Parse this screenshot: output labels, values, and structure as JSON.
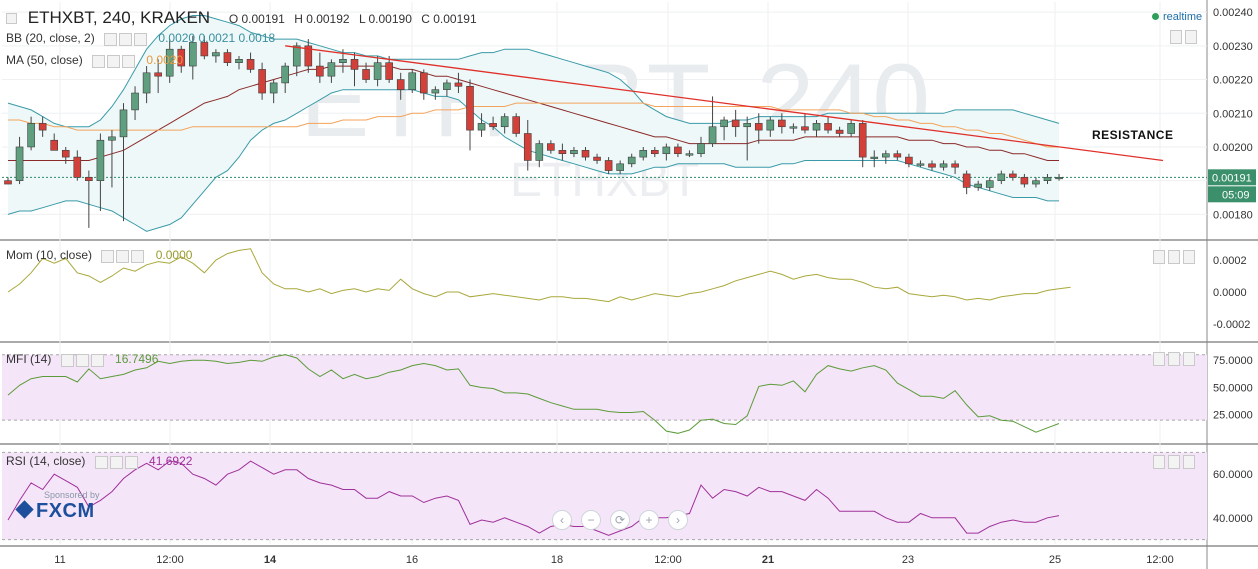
{
  "header": {
    "symbol": "ETHXBT, 240, KRAKEN",
    "ohlc": {
      "o": "O 0.00191",
      "h": "H 0.00192",
      "l": "L 0.00190",
      "c": "C 0.00191"
    },
    "realtime": "realtime",
    "watermark_main": "ETHXBT, 240",
    "watermark_sub": "ETHXBT"
  },
  "indicators": {
    "bb": {
      "label": "BB (20, close, 2)",
      "values": "0.0020  0.0021  0.0018"
    },
    "ma": {
      "label": "MA (50, close)",
      "value": "0.0020"
    },
    "mom": {
      "label": "Mom (10, close)",
      "value": "0.0000"
    },
    "mfi": {
      "label": "MFI (14)",
      "value": "16.7496"
    },
    "rsi": {
      "label": "RSI (14, close)",
      "value": "41.6922"
    }
  },
  "annotation": "RESISTANCE",
  "price_tags": {
    "last": "0.00191",
    "countdown": "05:09"
  },
  "sponsor": {
    "small": "Sponsored by",
    "brand": "FXCM"
  },
  "nav_buttons": [
    "‹",
    "−",
    "⟳",
    "+",
    "›"
  ],
  "colors": {
    "up": "#5f9f7f",
    "down": "#d3403a",
    "bb": "#3a9aa8",
    "bb_fill": "#eef8f8",
    "ma": "#f3a35b",
    "resistance": "#e0302a",
    "mom": "#a9a83c",
    "mfi": "#5c9b3a",
    "mfi_fill": "#f4e6f8",
    "rsi": "#a0309a",
    "rsi_fill": "#f4e6f8"
  },
  "chart_data": {
    "type": "candlestick",
    "x_tick_labels": [
      "11",
      "12:00",
      "14",
      "16",
      "18",
      "12:00",
      "21",
      "23",
      "25",
      "12:00"
    ],
    "y_axis_ticks": [
      "0.00240",
      "0.00230",
      "0.00220",
      "0.00210",
      "0.00200",
      "0.00180"
    ],
    "candles": [
      [
        0.0019,
        0.00191,
        0.00189,
        0.00189
      ],
      [
        0.0019,
        0.00203,
        0.00189,
        0.002
      ],
      [
        0.002,
        0.00209,
        0.00199,
        0.00207
      ],
      [
        0.00207,
        0.00209,
        0.00203,
        0.00205
      ],
      [
        0.00202,
        0.00204,
        0.00199,
        0.00199
      ],
      [
        0.00199,
        0.002,
        0.00195,
        0.00197
      ],
      [
        0.00197,
        0.00199,
        0.0019,
        0.00191
      ],
      [
        0.00191,
        0.00193,
        0.00176,
        0.0019
      ],
      [
        0.0019,
        0.00204,
        0.00181,
        0.00202
      ],
      [
        0.00202,
        0.00205,
        0.00188,
        0.00203
      ],
      [
        0.00203,
        0.00213,
        0.00178,
        0.00211
      ],
      [
        0.00211,
        0.00218,
        0.00208,
        0.00216
      ],
      [
        0.00216,
        0.00224,
        0.00213,
        0.00222
      ],
      [
        0.00222,
        0.00226,
        0.00216,
        0.00221
      ],
      [
        0.00221,
        0.00232,
        0.00219,
        0.00229
      ],
      [
        0.00229,
        0.0023,
        0.00222,
        0.00224
      ],
      [
        0.00224,
        0.00233,
        0.0022,
        0.00231
      ],
      [
        0.00231,
        0.00233,
        0.00226,
        0.00227
      ],
      [
        0.00227,
        0.00229,
        0.00225,
        0.00228
      ],
      [
        0.00228,
        0.00229,
        0.00224,
        0.00225
      ],
      [
        0.00225,
        0.00227,
        0.00223,
        0.00226
      ],
      [
        0.00226,
        0.00228,
        0.00222,
        0.00223
      ],
      [
        0.00223,
        0.00225,
        0.00214,
        0.00216
      ],
      [
        0.00216,
        0.0022,
        0.00213,
        0.00219
      ],
      [
        0.00219,
        0.00225,
        0.00216,
        0.00224
      ],
      [
        0.00224,
        0.00231,
        0.00221,
        0.0023
      ],
      [
        0.0023,
        0.00232,
        0.00222,
        0.00224
      ],
      [
        0.00224,
        0.00228,
        0.00219,
        0.00221
      ],
      [
        0.00221,
        0.00226,
        0.00219,
        0.00225
      ],
      [
        0.00225,
        0.00229,
        0.00222,
        0.00226
      ],
      [
        0.00226,
        0.00228,
        0.00218,
        0.00223
      ],
      [
        0.00223,
        0.00225,
        0.00219,
        0.0022
      ],
      [
        0.0022,
        0.00227,
        0.00218,
        0.00225
      ],
      [
        0.00225,
        0.00227,
        0.00219,
        0.0022
      ],
      [
        0.0022,
        0.00222,
        0.00214,
        0.00217
      ],
      [
        0.00217,
        0.00223,
        0.00216,
        0.00222
      ],
      [
        0.00222,
        0.00223,
        0.00214,
        0.00216
      ],
      [
        0.00216,
        0.00218,
        0.00214,
        0.00217
      ],
      [
        0.00217,
        0.0022,
        0.00215,
        0.00219
      ],
      [
        0.00219,
        0.00222,
        0.00216,
        0.00218
      ],
      [
        0.00218,
        0.0022,
        0.00199,
        0.00205
      ],
      [
        0.00205,
        0.0021,
        0.00203,
        0.00207
      ],
      [
        0.00207,
        0.00209,
        0.00205,
        0.00206
      ],
      [
        0.00206,
        0.0021,
        0.00204,
        0.00209
      ],
      [
        0.00209,
        0.0021,
        0.00203,
        0.00204
      ],
      [
        0.00204,
        0.00208,
        0.00193,
        0.00196
      ],
      [
        0.00196,
        0.00202,
        0.00194,
        0.00201
      ],
      [
        0.00201,
        0.00202,
        0.00198,
        0.00199
      ],
      [
        0.00199,
        0.00201,
        0.00196,
        0.00198
      ],
      [
        0.00198,
        0.002,
        0.00197,
        0.00199
      ],
      [
        0.00199,
        0.002,
        0.00196,
        0.00197
      ],
      [
        0.00197,
        0.00198,
        0.00195,
        0.00196
      ],
      [
        0.00196,
        0.00197,
        0.00192,
        0.00193
      ],
      [
        0.00193,
        0.00196,
        0.00192,
        0.00195
      ],
      [
        0.00195,
        0.00198,
        0.00194,
        0.00197
      ],
      [
        0.00197,
        0.002,
        0.00196,
        0.00199
      ],
      [
        0.00199,
        0.002,
        0.00197,
        0.00198
      ],
      [
        0.00198,
        0.00201,
        0.00196,
        0.002
      ],
      [
        0.002,
        0.00201,
        0.00197,
        0.00198
      ],
      [
        0.00198,
        0.00199,
        0.00197,
        0.00198
      ],
      [
        0.00198,
        0.00203,
        0.00197,
        0.00201
      ],
      [
        0.00201,
        0.00215,
        0.002,
        0.00206
      ],
      [
        0.00206,
        0.00209,
        0.00202,
        0.00208
      ],
      [
        0.00208,
        0.00211,
        0.00203,
        0.00206
      ],
      [
        0.00206,
        0.00209,
        0.00196,
        0.00207
      ],
      [
        0.00207,
        0.0021,
        0.00201,
        0.00205
      ],
      [
        0.00205,
        0.00209,
        0.00203,
        0.00208
      ],
      [
        0.00208,
        0.0021,
        0.00204,
        0.00206
      ],
      [
        0.00206,
        0.00207,
        0.00204,
        0.00206
      ],
      [
        0.00206,
        0.0021,
        0.00204,
        0.00205
      ],
      [
        0.00205,
        0.00208,
        0.00203,
        0.00207
      ],
      [
        0.00207,
        0.00209,
        0.00204,
        0.00205
      ],
      [
        0.00205,
        0.00206,
        0.00203,
        0.00204
      ],
      [
        0.00204,
        0.00208,
        0.00203,
        0.00207
      ],
      [
        0.00207,
        0.00208,
        0.00194,
        0.00197
      ],
      [
        0.00197,
        0.00199,
        0.00194,
        0.00197
      ],
      [
        0.00197,
        0.00199,
        0.00195,
        0.00198
      ],
      [
        0.00198,
        0.00199,
        0.00196,
        0.00197
      ],
      [
        0.00197,
        0.00198,
        0.00194,
        0.00195
      ],
      [
        0.00195,
        0.00196,
        0.00194,
        0.00195
      ],
      [
        0.00195,
        0.00196,
        0.00193,
        0.00194
      ],
      [
        0.00194,
        0.00196,
        0.00193,
        0.00195
      ],
      [
        0.00195,
        0.00196,
        0.00192,
        0.00194
      ],
      [
        0.00192,
        0.00193,
        0.00186,
        0.00188
      ],
      [
        0.00188,
        0.0019,
        0.00187,
        0.00189
      ],
      [
        0.00188,
        0.00191,
        0.00187,
        0.0019
      ],
      [
        0.0019,
        0.00193,
        0.00189,
        0.00192
      ],
      [
        0.00192,
        0.00193,
        0.0019,
        0.00191
      ],
      [
        0.00191,
        0.00192,
        0.00188,
        0.00189
      ],
      [
        0.00189,
        0.00191,
        0.00188,
        0.0019
      ],
      [
        0.0019,
        0.00192,
        0.00189,
        0.00191
      ],
      [
        0.00191,
        0.00192,
        0.0019,
        0.00191
      ]
    ],
    "bb_upper": [
      0.00213,
      0.00212,
      0.00211,
      0.00209,
      0.00207,
      0.00206,
      0.00206,
      0.00206,
      0.00208,
      0.00212,
      0.00217,
      0.00223,
      0.00229,
      0.00233,
      0.00236,
      0.00238,
      0.00239,
      0.00239,
      0.00238,
      0.00237,
      0.00236,
      0.00234,
      0.00233,
      0.00232,
      0.00232,
      0.00232,
      0.00231,
      0.0023,
      0.00229,
      0.00228,
      0.00228,
      0.00227,
      0.00227,
      0.00226,
      0.00226,
      0.00226,
      0.00226,
      0.00226,
      0.00226,
      0.00226,
      0.00227,
      0.00228,
      0.00228,
      0.00229,
      0.00229,
      0.00229,
      0.00228,
      0.00227,
      0.00226,
      0.00225,
      0.00224,
      0.00223,
      0.00222,
      0.0022,
      0.00217,
      0.00213,
      0.00211,
      0.00209,
      0.00208,
      0.00207,
      0.00207,
      0.00207,
      0.00207,
      0.00208,
      0.00208,
      0.00209,
      0.00209,
      0.00209,
      0.00209,
      0.00209,
      0.00209,
      0.0021,
      0.0021,
      0.0021,
      0.0021,
      0.0021,
      0.0021,
      0.0021,
      0.0021,
      0.0021,
      0.0021,
      0.0021,
      0.00211,
      0.00211,
      0.00211,
      0.00211,
      0.00211,
      0.00211,
      0.0021,
      0.00209,
      0.00208,
      0.00207
    ],
    "bb_mid": [
      0.00196,
      0.00196,
      0.00196,
      0.00196,
      0.00196,
      0.00196,
      0.00196,
      0.00196,
      0.00197,
      0.00198,
      0.00199,
      0.00201,
      0.00203,
      0.00205,
      0.00207,
      0.00209,
      0.00211,
      0.00213,
      0.00214,
      0.00215,
      0.00217,
      0.00218,
      0.00219,
      0.0022,
      0.00221,
      0.00222,
      0.00223,
      0.00223,
      0.00224,
      0.00224,
      0.00224,
      0.00224,
      0.00224,
      0.00224,
      0.00223,
      0.00223,
      0.00222,
      0.00221,
      0.00221,
      0.0022,
      0.00219,
      0.00218,
      0.00217,
      0.00216,
      0.00215,
      0.00214,
      0.00213,
      0.00212,
      0.00211,
      0.0021,
      0.00209,
      0.00208,
      0.00207,
      0.00206,
      0.00205,
      0.00204,
      0.00203,
      0.00203,
      0.00202,
      0.00201,
      0.00201,
      0.00201,
      0.00201,
      0.00201,
      0.00201,
      0.00202,
      0.00202,
      0.00202,
      0.00202,
      0.00203,
      0.00203,
      0.00203,
      0.00203,
      0.00203,
      0.00203,
      0.00203,
      0.00203,
      0.00203,
      0.00202,
      0.00202,
      0.00202,
      0.00201,
      0.00201,
      0.002,
      0.002,
      0.00199,
      0.00199,
      0.00198,
      0.00198,
      0.00197,
      0.00196,
      0.00196
    ],
    "bb_lower": [
      0.0018,
      0.00181,
      0.00181,
      0.00182,
      0.00183,
      0.00184,
      0.00184,
      0.00183,
      0.00182,
      0.00181,
      0.00179,
      0.00177,
      0.00175,
      0.00176,
      0.00177,
      0.00179,
      0.00183,
      0.00187,
      0.00191,
      0.00193,
      0.00197,
      0.00202,
      0.00205,
      0.00207,
      0.00208,
      0.0021,
      0.00212,
      0.00214,
      0.00216,
      0.00217,
      0.00217,
      0.00217,
      0.00217,
      0.00217,
      0.00217,
      0.00217,
      0.00216,
      0.00215,
      0.00215,
      0.00214,
      0.00211,
      0.00208,
      0.00206,
      0.00203,
      0.00201,
      0.00199,
      0.00198,
      0.00197,
      0.00196,
      0.00195,
      0.00194,
      0.00193,
      0.00192,
      0.00192,
      0.00192,
      0.00193,
      0.00194,
      0.00194,
      0.00195,
      0.00195,
      0.00195,
      0.00195,
      0.00195,
      0.00194,
      0.00194,
      0.00194,
      0.00194,
      0.00195,
      0.00195,
      0.00196,
      0.00196,
      0.00196,
      0.00196,
      0.00196,
      0.00196,
      0.00196,
      0.00196,
      0.00196,
      0.00195,
      0.00194,
      0.00193,
      0.00192,
      0.00191,
      0.00189,
      0.00188,
      0.00187,
      0.00186,
      0.00185,
      0.00185,
      0.00185,
      0.00184,
      0.00184
    ],
    "ma50": [
      0.00208,
      0.00208,
      0.00207,
      0.00207,
      0.00206,
      0.00206,
      0.00205,
      0.00205,
      0.00205,
      0.00205,
      0.00205,
      0.00205,
      0.00205,
      0.00205,
      0.00205,
      0.00205,
      0.00206,
      0.00206,
      0.00206,
      0.00206,
      0.00206,
      0.00206,
      0.00206,
      0.00206,
      0.00206,
      0.00206,
      0.00207,
      0.00207,
      0.00207,
      0.00208,
      0.00208,
      0.00208,
      0.00209,
      0.00209,
      0.00209,
      0.0021,
      0.0021,
      0.00211,
      0.00211,
      0.00211,
      0.00212,
      0.00212,
      0.00212,
      0.00212,
      0.00213,
      0.00213,
      0.00213,
      0.00213,
      0.00213,
      0.00213,
      0.00213,
      0.00213,
      0.00213,
      0.00213,
      0.00213,
      0.00213,
      0.00212,
      0.00212,
      0.00212,
      0.00212,
      0.00212,
      0.00212,
      0.00212,
      0.00212,
      0.00212,
      0.00212,
      0.00212,
      0.00211,
      0.00211,
      0.00211,
      0.00211,
      0.00211,
      0.00211,
      0.0021,
      0.0021,
      0.00209,
      0.00209,
      0.00208,
      0.00208,
      0.00207,
      0.00207,
      0.00206,
      0.00206,
      0.00205,
      0.00205,
      0.00204,
      0.00204,
      0.00203,
      0.00202,
      0.00201,
      0.002,
      0.002
    ],
    "resistance_line": {
      "from": [
        24,
        0.0023
      ],
      "to": [
        100,
        0.00196
      ]
    },
    "mom": {
      "range": [
        -0.0003,
        0.0003
      ],
      "ticks": [
        "0.0002",
        "0.0000",
        "-0.0002"
      ],
      "values": [
        0.0,
        5e-05,
        0.00012,
        0.00021,
        0.00018,
        0.00021,
        0.00012,
        0.0001,
        6e-05,
        0.0001,
        0.00015,
        0.00013,
        0.00017,
        0.00019,
        0.00018,
        0.00022,
        0.00018,
        0.00012,
        0.0002,
        0.00024,
        0.00026,
        0.00027,
        0.00012,
        5e-05,
        2e-05,
        2e-05,
        0.0,
        2e-05,
        -1e-05,
        1e-05,
        2e-05,
        0.0,
        2e-05,
        1e-05,
        8e-05,
        2e-05,
        -1e-05,
        -3e-05,
        0.0,
        0.0,
        -3e-05,
        -2e-05,
        -1e-05,
        -2e-05,
        -3e-05,
        -4e-05,
        -5e-05,
        -3e-05,
        -3e-05,
        -4e-05,
        -4e-05,
        -5e-05,
        -6e-05,
        -3e-05,
        -5e-05,
        -3e-05,
        -1e-05,
        -2e-05,
        -3e-05,
        -1e-05,
        0.0,
        2e-05,
        4e-05,
        7e-05,
        9e-05,
        0.00011,
        0.00013,
        0.00011,
        8e-05,
        0.0001,
        0.00011,
        9e-05,
        8e-05,
        8e-05,
        6e-05,
        3e-05,
        2e-05,
        3e-05,
        -1e-05,
        -2e-05,
        -3e-05,
        -2e-05,
        -3e-05,
        -5e-05,
        -4e-05,
        -5e-05,
        -3e-05,
        -2e-05,
        -1e-05,
        -1e-05,
        1e-05,
        2e-05,
        3e-05
      ]
    },
    "mfi": {
      "range": [
        0,
        88
      ],
      "ticks": [
        "75.0000",
        "50.0000",
        "25.0000"
      ],
      "bands": [
        80,
        20
      ],
      "values": [
        43,
        52,
        58,
        60,
        60,
        60,
        55,
        67,
        58,
        60,
        62,
        66,
        68,
        74,
        72,
        74,
        75,
        75,
        74,
        72,
        73,
        75,
        74,
        78,
        80,
        77,
        67,
        60,
        66,
        58,
        62,
        58,
        60,
        64,
        66,
        70,
        72,
        70,
        66,
        67,
        52,
        50,
        49,
        45,
        45,
        44,
        40,
        36,
        33,
        30,
        30,
        30,
        28,
        27,
        27,
        28,
        20,
        10,
        8,
        11,
        20,
        21,
        17,
        16,
        24,
        51,
        53,
        52,
        56,
        46,
        62,
        70,
        67,
        65,
        68,
        70,
        66,
        54,
        48,
        42,
        42,
        40,
        47,
        34,
        23,
        24,
        20,
        19,
        14,
        9,
        13,
        17
      ]
    },
    "rsi": {
      "range": [
        28,
        72
      ],
      "ticks": [
        "60.0000",
        "40.0000"
      ],
      "bands": [
        70,
        30
      ],
      "values": [
        39,
        48,
        56,
        53,
        60,
        57,
        54,
        45,
        48,
        52,
        58,
        62,
        65,
        62,
        66,
        65,
        60,
        58,
        55,
        60,
        62,
        66,
        63,
        60,
        62,
        62,
        58,
        56,
        55,
        53,
        53,
        49,
        49,
        52,
        50,
        50,
        47,
        49,
        50,
        48,
        37,
        39,
        38,
        40,
        38,
        36,
        33,
        36,
        37,
        36,
        36,
        34,
        32,
        34,
        36,
        40,
        40,
        40,
        41,
        42,
        55,
        49,
        53,
        52,
        50,
        54,
        52,
        52,
        50,
        48,
        53,
        49,
        43,
        43,
        43,
        43,
        40,
        38,
        38,
        42,
        40,
        40,
        40,
        33,
        33,
        36,
        38,
        39,
        38,
        38,
        40,
        41
      ]
    },
    "last_price": 0.00191
  }
}
